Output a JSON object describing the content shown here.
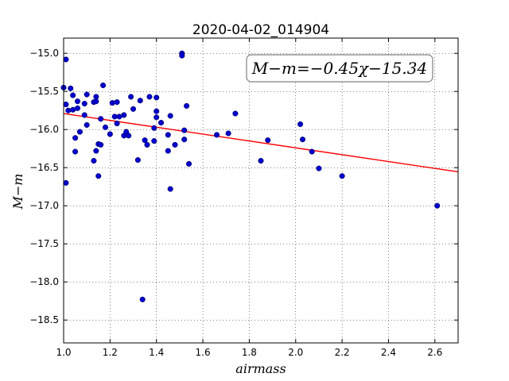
{
  "chart_data": {
    "type": "scatter",
    "title": "2020-04-02_014904",
    "xlabel": "airmass",
    "ylabel": "M−m",
    "xlim": [
      1.0,
      2.7
    ],
    "ylim": [
      -18.8,
      -14.8
    ],
    "xticks": [
      1.0,
      1.2,
      1.4,
      1.6,
      1.8,
      2.0,
      2.2,
      2.4,
      2.6
    ],
    "xtick_labels": [
      "1.0",
      "1.2",
      "1.4",
      "1.6",
      "1.8",
      "2.0",
      "2.2",
      "2.4",
      "2.6"
    ],
    "yticks": [
      -15.0,
      -15.5,
      -16.0,
      -16.5,
      -17.0,
      -17.5,
      -18.0,
      -18.5
    ],
    "ytick_labels": [
      "−15.0",
      "−15.5",
      "−16.0",
      "−16.5",
      "−17.0",
      "−17.5",
      "−18.0",
      "−18.5"
    ],
    "grid": true,
    "annotation": "M−m=−0.45χ−15.34",
    "annotation_position": "top-right",
    "fit_line": {
      "slope": -0.45,
      "intercept": -15.34,
      "color": "#ff0000"
    },
    "point_color": "#0000cc",
    "points": [
      [
        1.0,
        -15.45
      ],
      [
        1.01,
        -15.08
      ],
      [
        1.01,
        -16.7
      ],
      [
        1.01,
        -15.67
      ],
      [
        1.02,
        -15.75
      ],
      [
        1.03,
        -15.46
      ],
      [
        1.04,
        -15.55
      ],
      [
        1.04,
        -15.74
      ],
      [
        1.05,
        -16.11
      ],
      [
        1.05,
        -16.29
      ],
      [
        1.06,
        -15.63
      ],
      [
        1.06,
        -15.72
      ],
      [
        1.07,
        -16.03
      ],
      [
        1.09,
        -15.81
      ],
      [
        1.09,
        -15.66
      ],
      [
        1.1,
        -15.94
      ],
      [
        1.1,
        -15.54
      ],
      [
        1.13,
        -16.41
      ],
      [
        1.13,
        -15.64
      ],
      [
        1.14,
        -16.28
      ],
      [
        1.14,
        -15.57
      ],
      [
        1.14,
        -15.63
      ],
      [
        1.15,
        -16.19
      ],
      [
        1.15,
        -16.61
      ],
      [
        1.16,
        -16.2
      ],
      [
        1.16,
        -15.86
      ],
      [
        1.17,
        -15.42
      ],
      [
        1.18,
        -15.97
      ],
      [
        1.2,
        -16.06
      ],
      [
        1.21,
        -15.65
      ],
      [
        1.22,
        -15.83
      ],
      [
        1.23,
        -15.64
      ],
      [
        1.23,
        -15.92
      ],
      [
        1.24,
        -15.83
      ],
      [
        1.26,
        -16.08
      ],
      [
        1.26,
        -15.81
      ],
      [
        1.27,
        -16.03
      ],
      [
        1.28,
        -16.08
      ],
      [
        1.29,
        -15.57
      ],
      [
        1.3,
        -15.73
      ],
      [
        1.32,
        -16.4
      ],
      [
        1.33,
        -15.62
      ],
      [
        1.34,
        -18.23
      ],
      [
        1.35,
        -16.14
      ],
      [
        1.36,
        -16.2
      ],
      [
        1.37,
        -15.57
      ],
      [
        1.39,
        -15.98
      ],
      [
        1.39,
        -16.15
      ],
      [
        1.4,
        -15.58
      ],
      [
        1.4,
        -15.76
      ],
      [
        1.4,
        -15.84
      ],
      [
        1.42,
        -15.91
      ],
      [
        1.45,
        -16.07
      ],
      [
        1.45,
        -16.28
      ],
      [
        1.46,
        -15.82
      ],
      [
        1.46,
        -16.78
      ],
      [
        1.48,
        -16.2
      ],
      [
        1.51,
        -15.0
      ],
      [
        1.51,
        -15.03
      ],
      [
        1.52,
        -16.13
      ],
      [
        1.52,
        -16.01
      ],
      [
        1.53,
        -15.69
      ],
      [
        1.54,
        -16.45
      ],
      [
        1.66,
        -16.07
      ],
      [
        1.71,
        -16.05
      ],
      [
        1.74,
        -15.79
      ],
      [
        1.85,
        -16.41
      ],
      [
        1.88,
        -16.14
      ],
      [
        2.02,
        -15.93
      ],
      [
        2.03,
        -16.13
      ],
      [
        2.07,
        -16.29
      ],
      [
        2.1,
        -16.51
      ],
      [
        2.2,
        -16.61
      ],
      [
        2.61,
        -17.0
      ]
    ]
  }
}
